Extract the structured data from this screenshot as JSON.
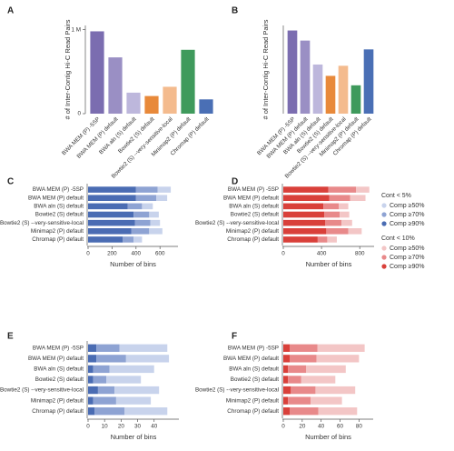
{
  "chart_data": [
    {
      "type": "bar",
      "panel": "A",
      "ylabel": "# of Inter-Contig Hi-C Read Pairs",
      "categories": [
        "BWA MEM (P) -5SP",
        "BWA MEM (P) default",
        "BWA aln (S) default",
        "Bowtie2 (S) default",
        "Bowtie2 (S) --very-sensitive-local",
        "Minimap2 (P) default",
        "Chromap (P) default"
      ],
      "values": [
        980000,
        670000,
        250000,
        210000,
        320000,
        760000,
        170000
      ],
      "colors": [
        "#7b6db0",
        "#9a8fc4",
        "#bdb7dc",
        "#e8893a",
        "#f4bb8e",
        "#3f9a5c",
        "#4a6fb5"
      ],
      "ylim": [
        0,
        1050000
      ],
      "yticks": [
        0,
        {
          "value": 1000000,
          "label": "1 M"
        }
      ]
    },
    {
      "type": "bar",
      "panel": "B",
      "ylabel": "# of Inter-Contig Hi-C Read Pairs",
      "categories": [
        "BWA MEM (P) -5SP",
        "BWA MEM (P) default",
        "BWA aln (S) default",
        "Bowtie2 (S) default",
        "Bowtie2 (S) --very-sensitive-local",
        "Minimap2 (P) default",
        "Chromap (P) default"
      ],
      "values": [
        660,
        580,
        390,
        300,
        380,
        225,
        510
      ],
      "colors": [
        "#7b6db0",
        "#9a8fc4",
        "#bdb7dc",
        "#e8893a",
        "#f4bb8e",
        "#3f9a5c",
        "#4a6fb5"
      ],
      "ylim": [
        0,
        700
      ]
    },
    {
      "type": "hbar_stacked",
      "panel": "C",
      "xlabel": "Number of bins",
      "legend_title": "Cont < 5%",
      "categories": [
        "BWA MEM (P) -5SP",
        "BWA MEM (P) default",
        "BWA aln (S) default",
        "Bowtie2 (S) default",
        "Bowtie2 (S) --very-sensitive-local",
        "Minimap2 (P) default",
        "Chromap (P) default"
      ],
      "series": [
        {
          "name": "Comp ≥90%",
          "color": "#4a6cb3",
          "values": [
            400,
            400,
            330,
            380,
            390,
            360,
            290
          ]
        },
        {
          "name": "Comp ≥70%",
          "color": "#8ea3d3",
          "values": [
            180,
            170,
            120,
            130,
            130,
            150,
            90
          ]
        },
        {
          "name": "Comp ≥50%",
          "color": "#c8d3ec",
          "values": [
            110,
            90,
            90,
            80,
            80,
            110,
            70
          ]
        }
      ],
      "xlim": [
        0,
        750
      ],
      "xticks": [
        0,
        200,
        400,
        600
      ]
    },
    {
      "type": "hbar_stacked",
      "panel": "D",
      "xlabel": "Number of bins",
      "legend_title": "Cont < 10%",
      "categories": [
        "BWA MEM (P) -5SP",
        "BWA MEM (P) default",
        "BWA aln (S) default",
        "Bowtie2 (S) default",
        "Bowtie2 (S) --very-sensitive-local",
        "Minimap2 (P) default",
        "Chromap (P) default"
      ],
      "series": [
        {
          "name": "Comp ≥90%",
          "color": "#d9403a",
          "values": [
            470,
            480,
            420,
            430,
            440,
            450,
            360
          ]
        },
        {
          "name": "Comp ≥70%",
          "color": "#e8898a",
          "values": [
            290,
            220,
            160,
            160,
            170,
            230,
            100
          ]
        },
        {
          "name": "Comp ≥50%",
          "color": "#f3c6c6",
          "values": [
            140,
            160,
            100,
            100,
            110,
            140,
            100
          ]
        }
      ],
      "xlim": [
        0,
        950
      ],
      "xticks": [
        0,
        400,
        800
      ]
    },
    {
      "type": "hbar_stacked",
      "panel": "E",
      "xlabel": "Number of bins",
      "categories": [
        "BWA MEM (P) -5SP",
        "BWA MEM (P) default",
        "BWA aln (S) default",
        "Bowtie2 (S) default",
        "Bowtie2 (S) --very-sensitive-local",
        "Minimap2 (P) default",
        "Chromap (P) default"
      ],
      "series": [
        {
          "color": "#4a6cb3",
          "values": [
            5,
            5,
            3,
            3,
            6,
            3,
            4
          ]
        },
        {
          "color": "#8ea3d3",
          "values": [
            14,
            18,
            10,
            8,
            10,
            14,
            18
          ]
        },
        {
          "color": "#c8d3ec",
          "values": [
            29,
            26,
            27,
            21,
            27,
            21,
            26
          ]
        }
      ],
      "xlim": [
        0,
        55
      ],
      "xticks": [
        0,
        10,
        20,
        30,
        40
      ]
    },
    {
      "type": "hbar_stacked",
      "panel": "F",
      "xlabel": "Number of bins",
      "categories": [
        "BWA MEM (P) -5SP",
        "BWA MEM (P) default",
        "BWA aln (S) default",
        "Bowtie2 (S) default",
        "Bowtie2 (S) --very-sensitive-local",
        "Minimap2 (P) default",
        "Chromap (P) default"
      ],
      "series": [
        {
          "color": "#d9403a",
          "values": [
            7,
            7,
            5,
            5,
            8,
            5,
            7
          ]
        },
        {
          "color": "#e8898a",
          "values": [
            29,
            28,
            19,
            14,
            26,
            24,
            30
          ]
        },
        {
          "color": "#f3c6c6",
          "values": [
            50,
            45,
            42,
            36,
            42,
            33,
            41
          ]
        }
      ],
      "xlim": [
        0,
        95
      ],
      "xticks": [
        0,
        20,
        40,
        60,
        80
      ]
    }
  ]
}
